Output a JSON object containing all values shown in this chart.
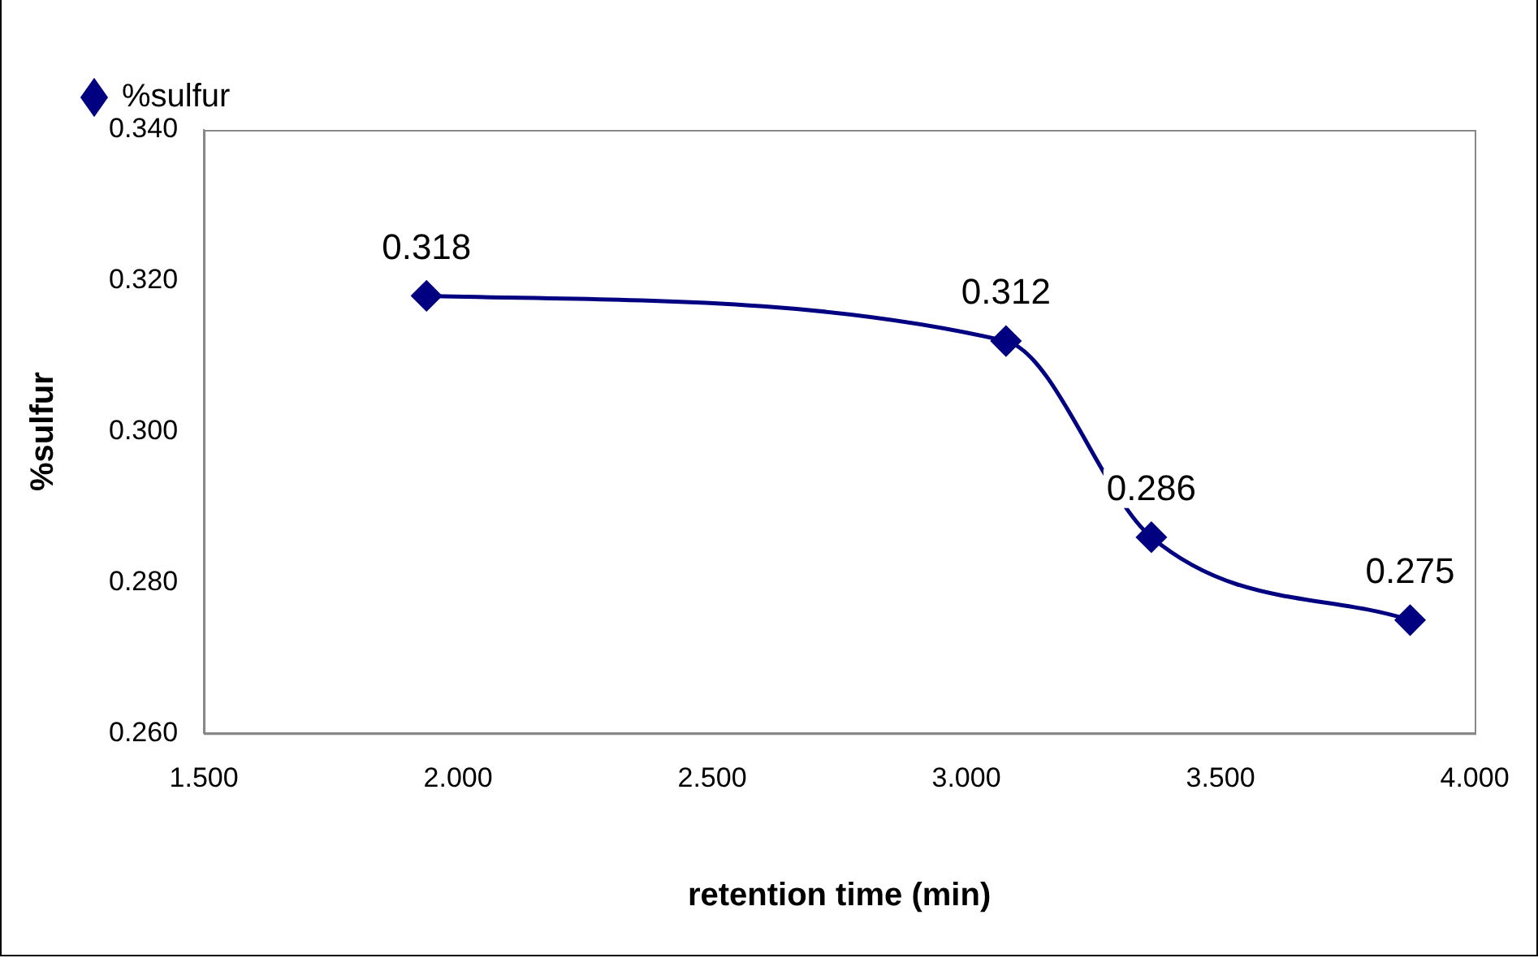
{
  "chart_data": {
    "type": "line",
    "xlabel": "retention time (min)",
    "ylabel": "%sulfur",
    "x": [
      1.938,
      3.078,
      3.364,
      3.873
    ],
    "series": [
      {
        "name": "%sulfur",
        "color": "#000080",
        "values": [
          0.318,
          0.312,
          0.286,
          0.275
        ]
      }
    ],
    "xlim": [
      1.5,
      4.0
    ],
    "xticks": [
      {
        "value": 1.5,
        "label": "1.500"
      },
      {
        "value": 2.0,
        "label": "2.000"
      },
      {
        "value": 2.5,
        "label": "2.500"
      },
      {
        "value": 3.0,
        "label": "3.000"
      },
      {
        "value": 3.5,
        "label": "3.500"
      },
      {
        "value": 4.0,
        "label": "4.000"
      }
    ],
    "ylim": [
      0.26,
      0.34
    ],
    "yticks": [
      {
        "value": 0.26,
        "label": "0.260"
      },
      {
        "value": 0.28,
        "label": "0.280"
      },
      {
        "value": 0.3,
        "label": "0.300"
      },
      {
        "value": 0.32,
        "label": "0.320"
      },
      {
        "value": 0.34,
        "label": "0.340"
      }
    ],
    "grid": false,
    "legend": "top left",
    "marker": "diamond",
    "line_style": "solid",
    "data_labels": true
  }
}
